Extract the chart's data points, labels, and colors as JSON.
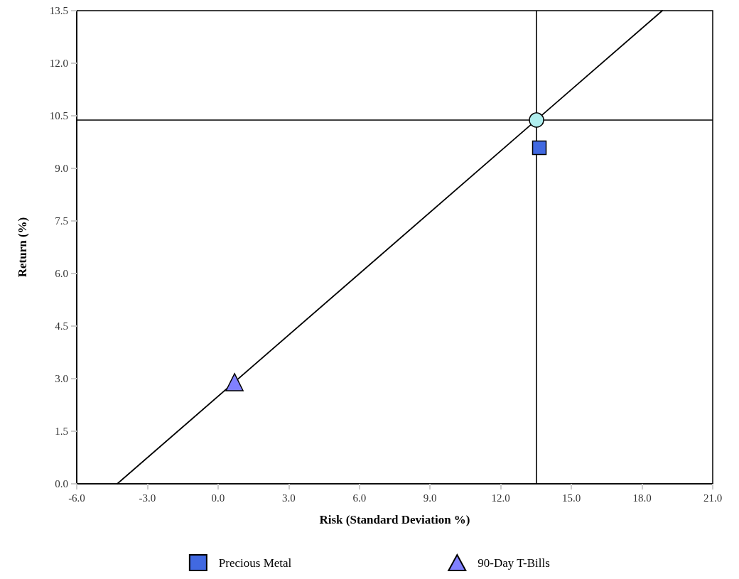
{
  "chart_data": {
    "type": "scatter",
    "xlabel": "Risk (Standard Deviation %)",
    "ylabel": "Return (%)",
    "xlim": [
      -6,
      21
    ],
    "xticks": [
      {
        "value": -6,
        "label": "-6.0"
      },
      {
        "value": -3,
        "label": "-3.0"
      },
      {
        "value": 0,
        "label": "0.0"
      },
      {
        "value": 3,
        "label": "3.0"
      },
      {
        "value": 6,
        "label": "6.0"
      },
      {
        "value": 9,
        "label": "9.0"
      },
      {
        "value": 12,
        "label": "12.0"
      },
      {
        "value": 15,
        "label": "15.0"
      },
      {
        "value": 18,
        "label": "18.0"
      },
      {
        "value": 21,
        "label": "21.0"
      }
    ],
    "ylim": [
      0,
      13.5
    ],
    "yticks": [
      {
        "value": 0,
        "label": "0.0"
      },
      {
        "value": 1.5,
        "label": "1.5"
      },
      {
        "value": 3,
        "label": "3.0"
      },
      {
        "value": 4.5,
        "label": "4.5"
      },
      {
        "value": 6,
        "label": "6.0"
      },
      {
        "value": 7.5,
        "label": "7.5"
      },
      {
        "value": 9,
        "label": "9.0"
      },
      {
        "value": 10.5,
        "label": "10.5"
      },
      {
        "value": 12,
        "label": "12.0"
      },
      {
        "value": 13.5,
        "label": "13.5"
      }
    ],
    "grid": false,
    "legend": "bottom",
    "series": [
      {
        "type": "line",
        "color": "#000000",
        "marker": "none",
        "line_style": "solid",
        "x": [
          -4.28,
          18.86
        ],
        "values": [
          0,
          13.5
        ]
      },
      {
        "name": "Precious Metal",
        "color": "#4169e1",
        "marker": "square",
        "x": [
          13.64
        ],
        "values": [
          9.59
        ]
      },
      {
        "color": "#afeeee",
        "marker": "circle",
        "x": [
          13.52
        ],
        "values": [
          10.38
        ]
      },
      {
        "name": "90-Day T-Bills",
        "color": "#8080ff",
        "marker": "triangle",
        "x": [
          0.7
        ],
        "values": [
          2.9
        ]
      }
    ],
    "ref_lines": [
      {
        "axis": "x",
        "value": 13.52,
        "color": "#000000"
      },
      {
        "axis": "y",
        "value": 10.38,
        "color": "#000000"
      }
    ]
  }
}
